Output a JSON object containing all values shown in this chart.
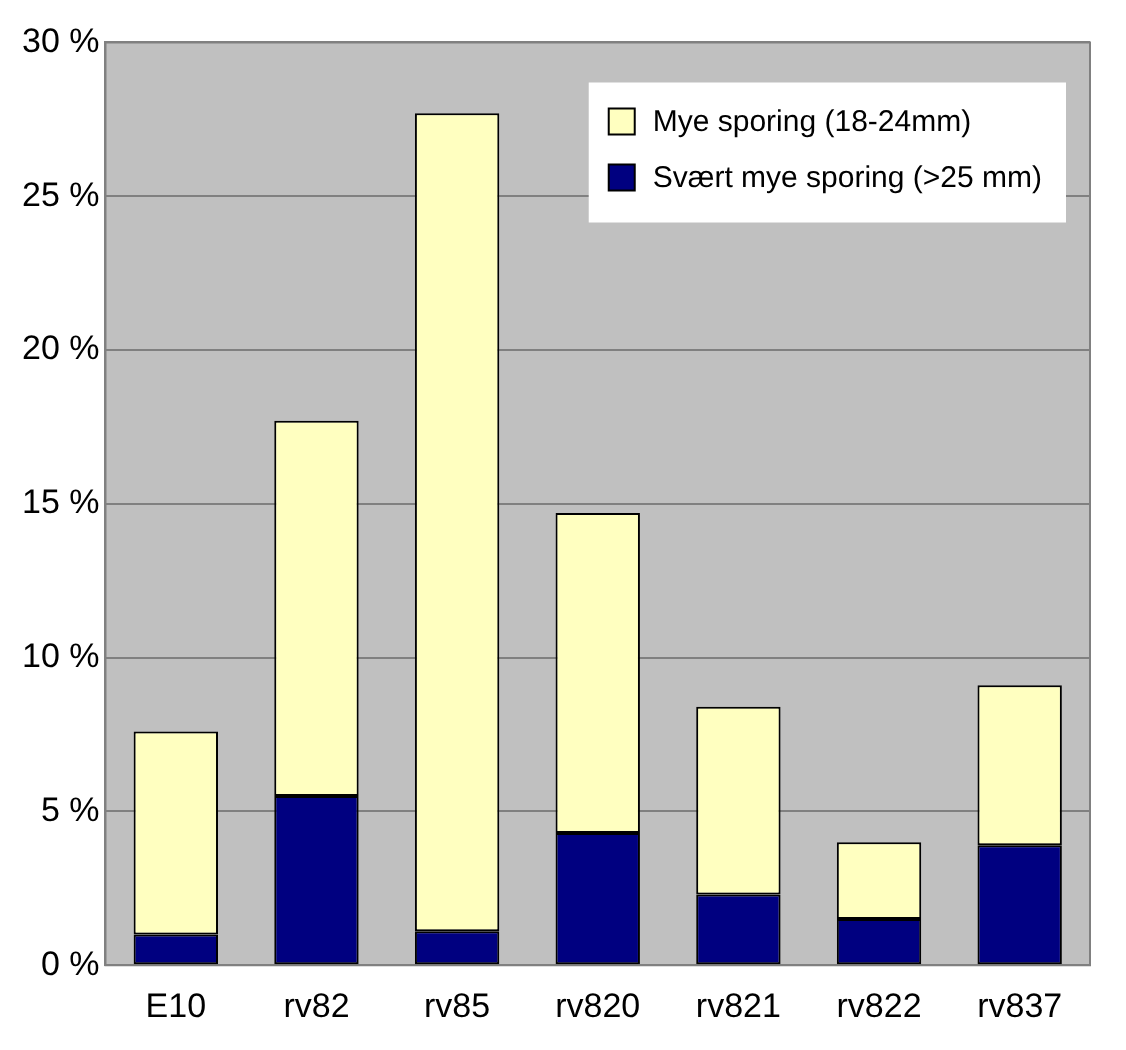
{
  "chart_data": {
    "type": "bar",
    "stacked": true,
    "categories": [
      "E10",
      "rv82",
      "rv85",
      "rv820",
      "rv821",
      "rv822",
      "rv837"
    ],
    "series": [
      {
        "name": "Svært mye sporing (>25 mm)",
        "color": "#000080",
        "values": [
          1.0,
          5.5,
          1.1,
          4.3,
          2.3,
          1.5,
          3.9
        ]
      },
      {
        "name": "Mye sporing (18-24mm)",
        "color": "#ffffc0",
        "values": [
          6.6,
          12.2,
          26.6,
          10.4,
          6.1,
          2.5,
          5.2
        ]
      }
    ],
    "ylim": [
      0,
      30
    ],
    "yticks": [
      {
        "value": 0,
        "label": "0 %"
      },
      {
        "value": 5,
        "label": "5 %"
      },
      {
        "value": 10,
        "label": "10 %"
      },
      {
        "value": 15,
        "label": "15 %"
      },
      {
        "value": 20,
        "label": "20 %"
      },
      {
        "value": 25,
        "label": "25 %"
      },
      {
        "value": 30,
        "label": "30 %"
      }
    ],
    "grid": "y",
    "legend": "top right"
  }
}
